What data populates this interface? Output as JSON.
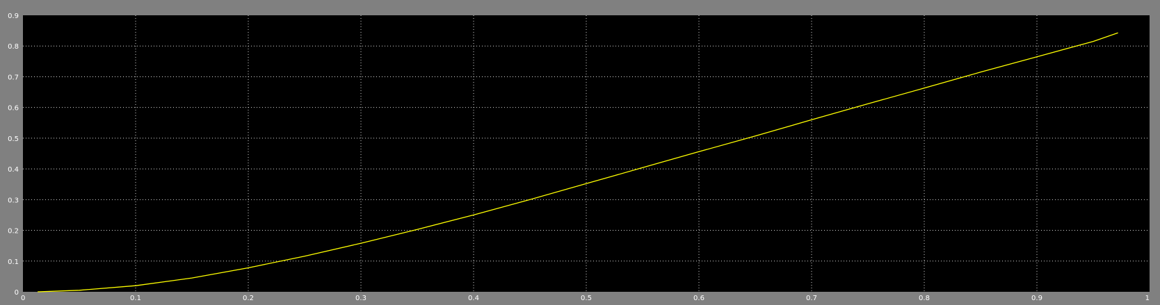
{
  "chart_data": {
    "type": "line",
    "title": "",
    "xlabel": "",
    "ylabel": "",
    "xlim": [
      0,
      1
    ],
    "ylim": [
      0,
      0.9
    ],
    "x_ticks": [
      0,
      0.1,
      0.2,
      0.3,
      0.4,
      0.5,
      0.6,
      0.7,
      0.8,
      0.9,
      1
    ],
    "x_tick_labels": [
      "0",
      "0.1",
      "0.2",
      "0.3",
      "0.4",
      "0.5",
      "0.6",
      "0.7",
      "0.8",
      "0.9",
      "1"
    ],
    "y_ticks": [
      0,
      0.1,
      0.2,
      0.3,
      0.4,
      0.5,
      0.6,
      0.7,
      0.8,
      0.9
    ],
    "y_tick_labels": [
      "0",
      "0.1",
      "0.2",
      "0.3",
      "0.4",
      "0.5",
      "0.6",
      "0.7",
      "0.8",
      "0.9"
    ],
    "grid": true,
    "grid_style": "dotted",
    "colors": {
      "figure_background": "#808080",
      "axes_background": "#000000",
      "grid": "#ffffff",
      "tick_labels": "#ffffff",
      "series": "#ffff00"
    },
    "series": [
      {
        "x": [
          0.013,
          0.05,
          0.1,
          0.15,
          0.2,
          0.25,
          0.3,
          0.35,
          0.4,
          0.45,
          0.5,
          0.55,
          0.6,
          0.65,
          0.7,
          0.75,
          0.8,
          0.85,
          0.9,
          0.95,
          0.972
        ],
        "y": [
          0.0,
          0.005,
          0.02,
          0.045,
          0.078,
          0.116,
          0.158,
          0.203,
          0.25,
          0.3,
          0.352,
          0.404,
          0.456,
          0.507,
          0.56,
          0.612,
          0.663,
          0.715,
          0.765,
          0.815,
          0.843
        ]
      }
    ]
  }
}
